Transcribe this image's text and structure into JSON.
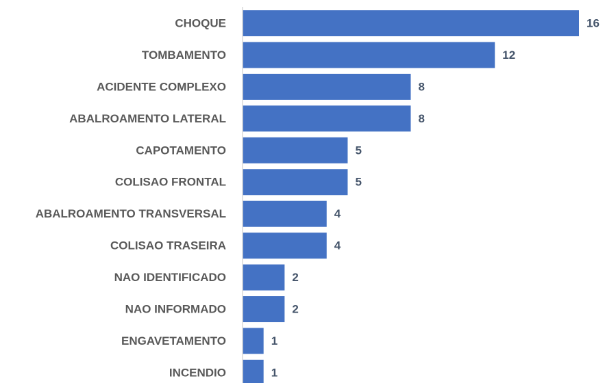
{
  "chart_data": {
    "type": "bar",
    "orientation": "horizontal",
    "categories": [
      "CHOQUE",
      "TOMBAMENTO",
      "ACIDENTE COMPLEXO",
      "ABALROAMENTO LATERAL",
      "CAPOTAMENTO",
      "COLISAO FRONTAL",
      "ABALROAMENTO TRANSVERSAL",
      "COLISAO TRASEIRA",
      "NAO IDENTIFICADO",
      "NAO INFORMADO",
      "ENGAVETAMENTO",
      "INCENDIO"
    ],
    "values": [
      16,
      12,
      8,
      8,
      5,
      5,
      4,
      4,
      2,
      2,
      1,
      1
    ],
    "color": "#4472c4"
  }
}
